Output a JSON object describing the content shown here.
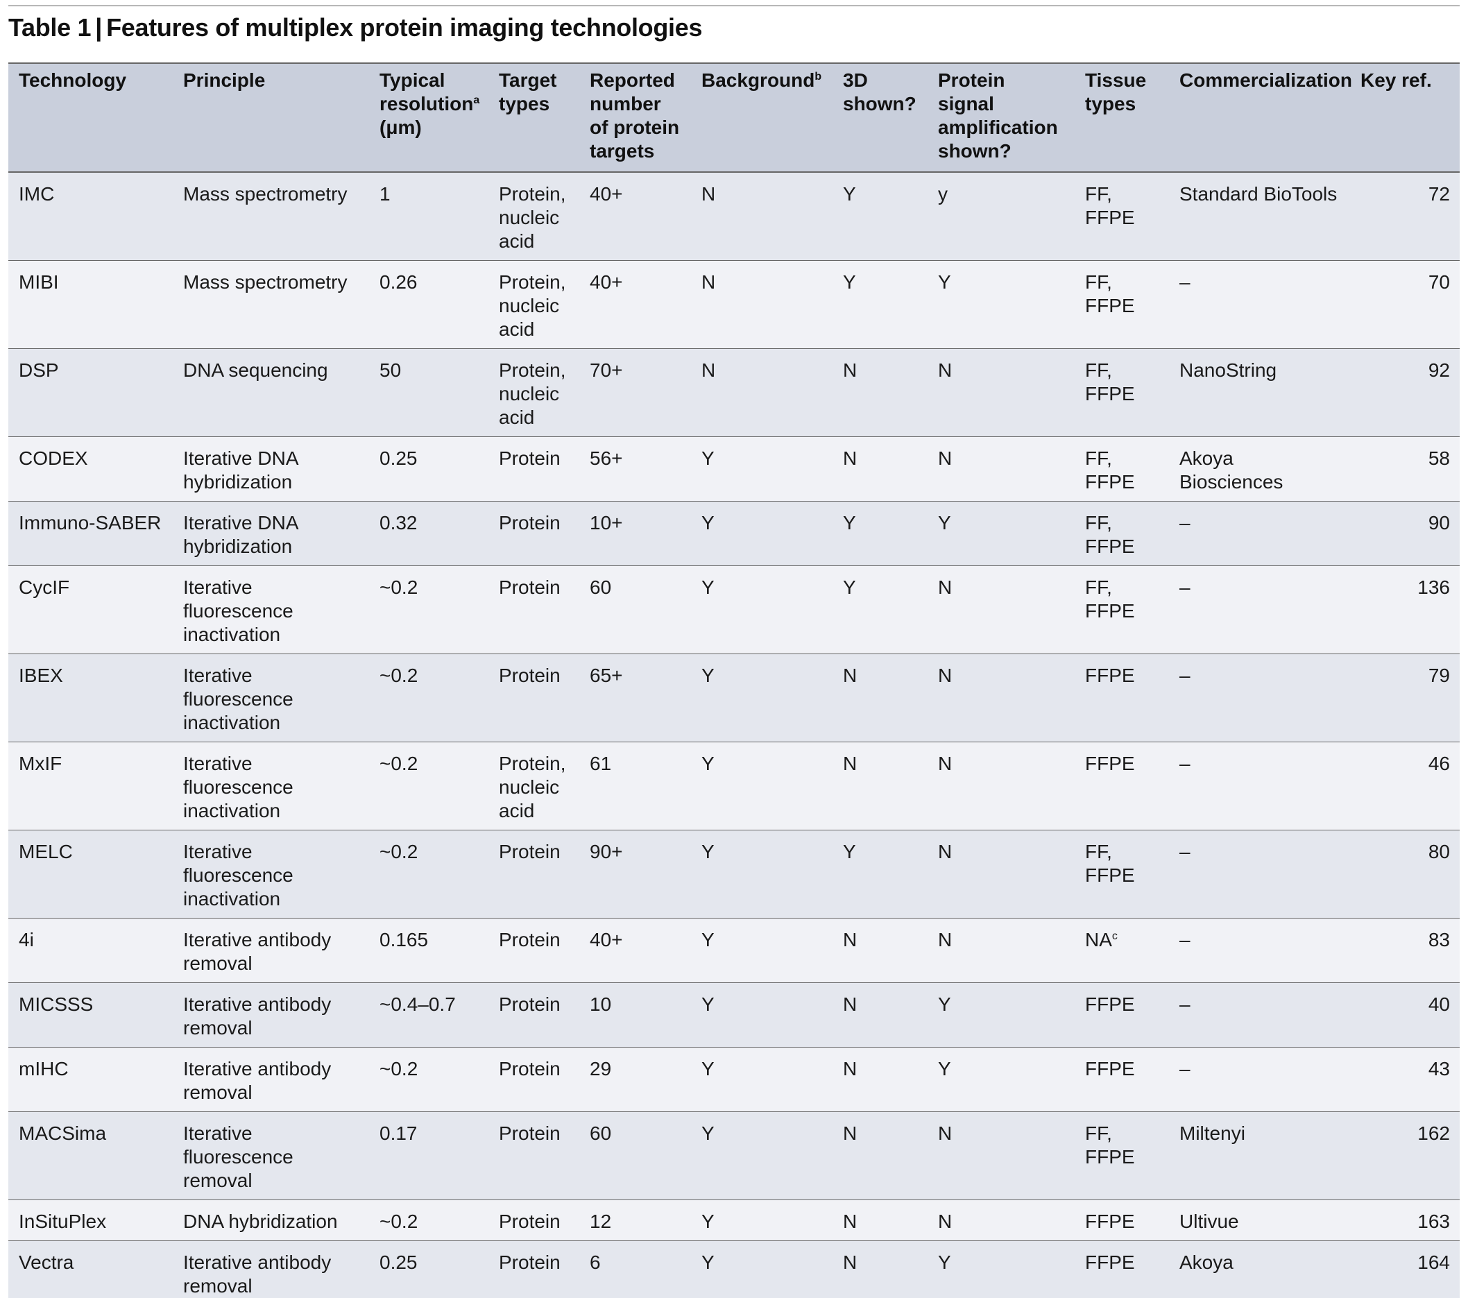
{
  "caption": {
    "label": "Table 1",
    "title": "Features of multiplex protein imaging technologies"
  },
  "columns": {
    "technology": "Technology",
    "principle": "Principle",
    "resolution": "Typical resolution",
    "resolution_sup": "a",
    "resolution_unit": "(μm)",
    "target_types": "Target types",
    "num_targets": "Reported number of protein targets",
    "background": "Background",
    "background_sup": "b",
    "three_d": "3D shown?",
    "amplification": "Protein signal amplification shown?",
    "tissue": "Tissue types",
    "commercialization": "Commercialization",
    "key_ref": "Key ref."
  },
  "rows": [
    {
      "technology": "IMC",
      "principle": "Mass spectrometry",
      "resolution": "1",
      "target_types": "Protein, nucleic acid",
      "num_targets": "40+",
      "background": "N",
      "three_d": "Y",
      "amplification": "y",
      "tissue": "FF, FFPE",
      "tissue_sup": "",
      "commercialization": "Standard BioTools",
      "key_ref": "72"
    },
    {
      "technology": "MIBI",
      "principle": "Mass spectrometry",
      "resolution": "0.26",
      "target_types": "Protein, nucleic acid",
      "num_targets": "40+",
      "background": "N",
      "three_d": "Y",
      "amplification": "Y",
      "tissue": "FF, FFPE",
      "tissue_sup": "",
      "commercialization": "–",
      "key_ref": "70"
    },
    {
      "technology": "DSP",
      "principle": "DNA sequencing",
      "resolution": "50",
      "target_types": "Protein, nucleic acid",
      "num_targets": "70+",
      "background": "N",
      "three_d": "N",
      "amplification": "N",
      "tissue": "FF, FFPE",
      "tissue_sup": "",
      "commercialization": "NanoString",
      "key_ref": "92"
    },
    {
      "technology": "CODEX",
      "principle": "Iterative DNA hybridization",
      "resolution": "0.25",
      "target_types": "Protein",
      "num_targets": "56+",
      "background": "Y",
      "three_d": "N",
      "amplification": "N",
      "tissue": "FF, FFPE",
      "tissue_sup": "",
      "commercialization": "Akoya Biosciences",
      "key_ref": "58"
    },
    {
      "technology": "Immuno-SABER",
      "principle": "Iterative DNA hybridization",
      "resolution": "0.32",
      "target_types": "Protein",
      "num_targets": "10+",
      "background": "Y",
      "three_d": "Y",
      "amplification": "Y",
      "tissue": "FF, FFPE",
      "tissue_sup": "",
      "commercialization": "–",
      "key_ref": "90"
    },
    {
      "technology": "CycIF",
      "principle": "Iterative fluorescence inactivation",
      "resolution": "~0.2",
      "target_types": "Protein",
      "num_targets": "60",
      "background": "Y",
      "three_d": "Y",
      "amplification": "N",
      "tissue": "FF, FFPE",
      "tissue_sup": "",
      "commercialization": "–",
      "key_ref": "136"
    },
    {
      "technology": "IBEX",
      "principle": "Iterative fluorescence inactivation",
      "resolution": "~0.2",
      "target_types": "Protein",
      "num_targets": "65+",
      "background": "Y",
      "three_d": "N",
      "amplification": "N",
      "tissue": "FFPE",
      "tissue_sup": "",
      "commercialization": "–",
      "key_ref": "79"
    },
    {
      "technology": "MxIF",
      "principle": "Iterative fluorescence inactivation",
      "resolution": "~0.2",
      "target_types": "Protein, nucleic acid",
      "num_targets": "61",
      "background": "Y",
      "three_d": "N",
      "amplification": "N",
      "tissue": "FFPE",
      "tissue_sup": "",
      "commercialization": "–",
      "key_ref": "46"
    },
    {
      "technology": "MELC",
      "principle": "Iterative fluorescence inactivation",
      "resolution": "~0.2",
      "target_types": "Protein",
      "num_targets": "90+",
      "background": "Y",
      "three_d": "Y",
      "amplification": "N",
      "tissue": "FF, FFPE",
      "tissue_sup": "",
      "commercialization": "–",
      "key_ref": "80"
    },
    {
      "technology": "4i",
      "principle": "Iterative antibody removal",
      "resolution": "0.165",
      "target_types": "Protein",
      "num_targets": "40+",
      "background": "Y",
      "three_d": "N",
      "amplification": "N",
      "tissue": "NA",
      "tissue_sup": "c",
      "commercialization": "–",
      "key_ref": "83"
    },
    {
      "technology": "MICSSS",
      "principle": "Iterative antibody removal",
      "resolution": "~0.4–0.7",
      "target_types": "Protein",
      "num_targets": "10",
      "background": "Y",
      "three_d": "N",
      "amplification": "Y",
      "tissue": "FFPE",
      "tissue_sup": "",
      "commercialization": "–",
      "key_ref": "40"
    },
    {
      "technology": "mIHC",
      "principle": "Iterative antibody removal",
      "resolution": "~0.2",
      "target_types": "Protein",
      "num_targets": "29",
      "background": "Y",
      "three_d": "N",
      "amplification": "Y",
      "tissue": "FFPE",
      "tissue_sup": "",
      "commercialization": "–",
      "key_ref": "43"
    },
    {
      "technology": "MACSima",
      "principle": "Iterative fluorescence removal",
      "resolution": "0.17",
      "target_types": "Protein",
      "num_targets": "60",
      "background": "Y",
      "three_d": "N",
      "amplification": "N",
      "tissue": "FF, FFPE",
      "tissue_sup": "",
      "commercialization": "Miltenyi",
      "key_ref": "162"
    },
    {
      "technology": "InSituPlex",
      "principle": "DNA hybridization",
      "resolution": "~0.2",
      "target_types": "Protein",
      "num_targets": "12",
      "background": "Y",
      "three_d": "N",
      "amplification": "N",
      "tissue": "FFPE",
      "tissue_sup": "",
      "commercialization": "Ultivue",
      "key_ref": "163"
    },
    {
      "technology": "Vectra",
      "principle": "Iterative antibody removal",
      "resolution": "0.25",
      "target_types": "Protein",
      "num_targets": "6",
      "background": "Y",
      "three_d": "N",
      "amplification": "Y",
      "tissue": "FFPE",
      "tissue_sup": "",
      "commercialization": "Akoya",
      "key_ref": "164"
    }
  ]
}
